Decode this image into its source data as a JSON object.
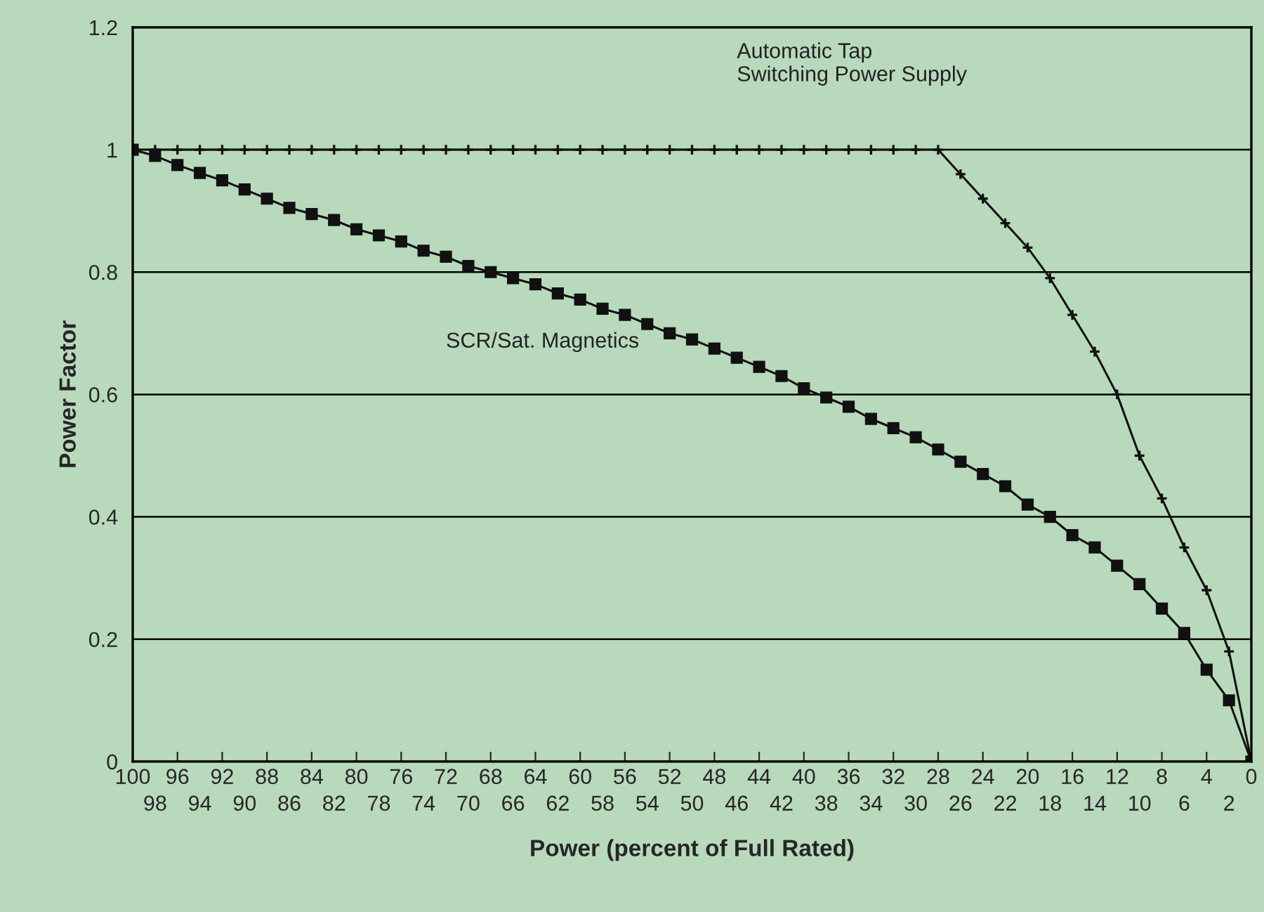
{
  "chart_data": {
    "type": "line",
    "xlabel": "Power (percent of Full Rated)",
    "ylabel": "Power Factor",
    "xlim": [
      100,
      0
    ],
    "xticks": [
      100,
      96,
      92,
      88,
      84,
      80,
      76,
      72,
      68,
      64,
      60,
      56,
      52,
      48,
      44,
      40,
      36,
      32,
      28,
      24,
      20,
      16,
      12,
      8,
      4,
      0
    ],
    "x2lim": [
      100,
      0
    ],
    "x2ticks": [
      98,
      94,
      90,
      86,
      82,
      78,
      74,
      70,
      66,
      62,
      58,
      54,
      50,
      46,
      42,
      38,
      34,
      30,
      26,
      22,
      18,
      14,
      10,
      6,
      2
    ],
    "ylim": [
      0,
      1.2
    ],
    "yticks": [
      0,
      0.2,
      0.4,
      0.6,
      0.8,
      1,
      1.2
    ],
    "grid": "y",
    "legend": false,
    "series": [
      {
        "name": "SCR/Sat. Magnetics",
        "color": "#111111",
        "marker": "square",
        "x": [
          100,
          98,
          96,
          94,
          92,
          90,
          88,
          86,
          84,
          82,
          80,
          78,
          76,
          74,
          72,
          70,
          68,
          66,
          64,
          62,
          60,
          58,
          56,
          54,
          52,
          50,
          48,
          46,
          44,
          42,
          40,
          38,
          36,
          34,
          32,
          30,
          28,
          26,
          24,
          22,
          20,
          18,
          16,
          14,
          12,
          10,
          8,
          6,
          4,
          2,
          0
        ],
        "values": [
          1.0,
          0.99,
          0.975,
          0.962,
          0.95,
          0.935,
          0.92,
          0.905,
          0.895,
          0.885,
          0.87,
          0.86,
          0.85,
          0.835,
          0.825,
          0.81,
          0.8,
          0.79,
          0.78,
          0.765,
          0.755,
          0.74,
          0.73,
          0.715,
          0.7,
          0.69,
          0.675,
          0.66,
          0.645,
          0.63,
          0.61,
          0.595,
          0.58,
          0.56,
          0.545,
          0.53,
          0.51,
          0.49,
          0.47,
          0.45,
          0.42,
          0.4,
          0.37,
          0.35,
          0.32,
          0.29,
          0.25,
          0.21,
          0.15,
          0.1,
          0.0
        ]
      },
      {
        "name": "Automatic Tap\nSwitching Power Supply",
        "color": "#111111",
        "marker": "cross",
        "x": [
          100,
          98,
          96,
          94,
          92,
          90,
          88,
          86,
          84,
          82,
          80,
          78,
          76,
          74,
          72,
          70,
          68,
          66,
          64,
          62,
          60,
          58,
          56,
          54,
          52,
          50,
          48,
          46,
          44,
          42,
          40,
          38,
          36,
          34,
          32,
          30,
          28,
          26,
          24,
          22,
          20,
          18,
          16,
          14,
          12,
          10,
          8,
          6,
          4,
          2,
          0
        ],
        "values": [
          1,
          1,
          1,
          1,
          1,
          1,
          1,
          1,
          1,
          1,
          1,
          1,
          1,
          1,
          1,
          1,
          1,
          1,
          1,
          1,
          1,
          1,
          1,
          1,
          1,
          1,
          1,
          1,
          1,
          1,
          1,
          1,
          1,
          1,
          1,
          1,
          1,
          0.96,
          0.92,
          0.88,
          0.84,
          0.79,
          0.73,
          0.67,
          0.6,
          0.5,
          0.43,
          0.35,
          0.28,
          0.18,
          0.0
        ]
      }
    ]
  }
}
